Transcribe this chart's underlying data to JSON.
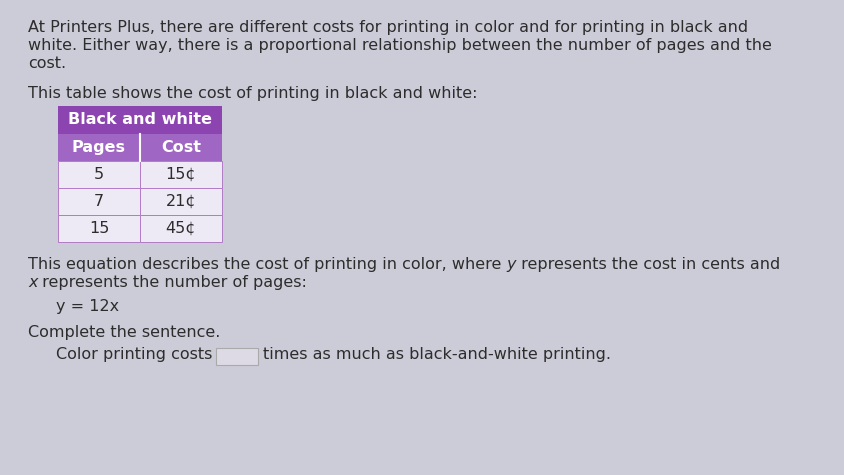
{
  "background_color": "#ccccd8",
  "text_color": "#2d2d2d",
  "para1_line1": "At Printers Plus, there are different costs for printing in color and for printing in black and",
  "para1_line2": "white. Either way, there is a proportional relationship between the number of pages and the",
  "para1_line3": "cost.",
  "para2": "This table shows the cost of printing in black and white:",
  "table_header": "Black and white",
  "table_header_bg": "#8b44b0",
  "table_subheader_bg": "#a066c4",
  "table_col1_header": "Pages",
  "table_col2_header": "Cost",
  "table_data": [
    [
      "5",
      "15¢"
    ],
    [
      "7",
      "21¢"
    ],
    [
      "15",
      "45¢"
    ]
  ],
  "table_row_bg": "#eeeaf5",
  "table_border_color": "#b07cc6",
  "p3_pre": "This equation describes the cost of printing in color, where ",
  "p3_italic1": "y",
  "p3_mid": " represents the cost in cents and",
  "p3_italic2": "x",
  "p3_post": " represents the number of pages:",
  "equation": "y = 12x",
  "complete_label": "Complete the sentence.",
  "sentence_start": "Color printing costs",
  "sentence_end": "times as much as black-and-white printing.",
  "answer_box_color": "#dddae6",
  "font_size": 11.5,
  "table_font_size": 11.5
}
